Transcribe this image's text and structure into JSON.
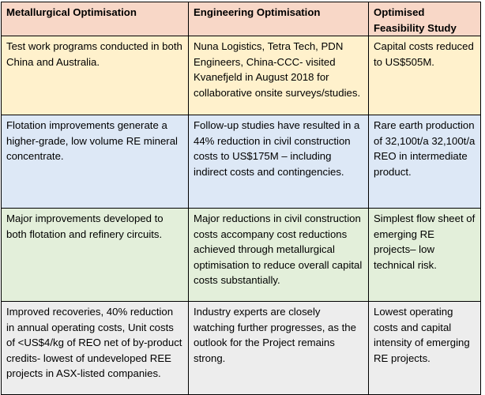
{
  "headers": [
    "Metallurgical Optimisation",
    "Engineering Optimisation",
    "Optimised Feasibility Study"
  ],
  "rows": [
    [
      "Test work programs conducted in both China and Australia.",
      "Nuna Logistics, Tetra Tech, PDN Engineers, China-CCC- visited Kvanefjeld in August 2018 for collaborative onsite surveys/studies.",
      "Capital costs reduced to US$505M."
    ],
    [
      "Flotation improvements generate a higher-grade, low volume RE mineral concentrate.",
      "Follow-up studies have resulted in a 44% reduction in civil construction costs to US$175M – including indirect costs and contingencies.",
      "Rare earth production of 32,100t/a 32,100t/a REO in intermediate product."
    ],
    [
      "Major improvements developed to both flotation and refinery circuits.",
      "Major reductions in civil construction costs accompany cost reductions achieved through metallurgical optimisation to reduce overall capital costs substantially.",
      "Simplest flow sheet of emerging RE projects– low technical risk."
    ],
    [
      "Improved recoveries, 40% reduction in annual operating costs, Unit costs of <US$4/kg of REO net of by-product credits- lowest of undeveloped REE projects in ASX-listed companies.",
      "Industry experts are closely watching further progresses, as the outlook for the Project remains strong.",
      "Lowest operating costs and capital intensity of emerging RE projects."
    ]
  ],
  "colors": {
    "header": "#f8d7c7",
    "row1": "#fff1cc",
    "row2": "#dde8f6",
    "row3": "#e3efda",
    "row4": "#ededed"
  }
}
